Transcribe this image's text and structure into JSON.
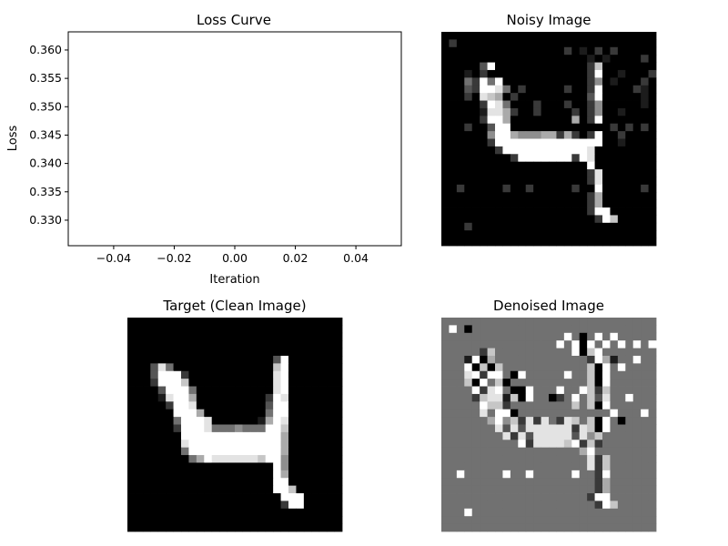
{
  "figure": {
    "background": "#ffffff",
    "axis_color": "#000000",
    "image_colormap": "gray"
  },
  "chart_data": [
    {
      "type": "line",
      "title": "Loss Curve",
      "xlabel": "Iteration",
      "ylabel": "Loss",
      "x": [],
      "series": [
        {
          "values": []
        }
      ],
      "xlim": [
        -0.055,
        0.055
      ],
      "ylim": [
        0.3255,
        0.3632
      ],
      "xticks": [
        -0.04,
        -0.02,
        0.0,
        0.02,
        0.04
      ],
      "xtick_labels": [
        "−0.04",
        "−0.02",
        "0.00",
        "0.02",
        "0.04"
      ],
      "yticks": [
        0.33,
        0.335,
        0.34,
        0.345,
        0.35,
        0.355,
        0.36
      ],
      "ytick_labels": [
        "0.330",
        "0.335",
        "0.340",
        "0.345",
        "0.350",
        "0.355",
        "0.360"
      ],
      "grid": false
    },
    {
      "type": "heatmap",
      "title": "Noisy Image",
      "colormap": "gray",
      "rows": 28,
      "cols": 28,
      "pixels": [
        "0000000000000000000000000000",
        "0200000000000000000000000000",
        "0000000000000000201020200000",
        "0000000000000000000101000020",
        "0000039000000000000270000000",
        "0001020000000000000290010002",
        "0004294900000000000250100020",
        "0003299840200000200290000210",
        "0002087602000000000390000010",
        "0000029840002000200250000010",
        "0000018862002000020250010000",
        "0000029960000000060290000000",
        "0002003990000000000000202020",
        "0000005996555662620290020000",
        "0000002999999999999990010000",
        "0000000299999999999800000000",
        "0000000002999999929800000000",
        "0000000000000000000900000000",
        "0000000000000000000280000000",
        "0000000000000000000280000000",
        "0020000020020000020090000020",
        "0000000000000000000260000000",
        "0000000000000000000260000000",
        "0000000000000000000299000000",
        "0000000000000000000029700000",
        "0002000000000000000000000000",
        "0000000000000000000000000000",
        "0000000000000000000000000000"
      ]
    },
    {
      "type": "heatmap",
      "title": "Target (Clean Image)",
      "colormap": "gray",
      "rows": 28,
      "cols": 28,
      "pixels": [
        "0000000000000000000000000000",
        "0000000000000000000000000000",
        "0000000000000000000000000000",
        "0000000000000000000000000000",
        "0000000000000000000000000000",
        "0000000000000000000390000000",
        "0003840000000000000790000000",
        "0003999200000000000890000000",
        "0002999700000000000890000000",
        "0000399940000000000890000000",
        "0000189960000000002980000000",
        "0000029980000000003990000000",
        "0000009996000000004990000000",
        "0000004999800000016980000000",
        "0000002999844454449970000000",
        "0000000999999999999960000000",
        "0000000899999999999960000000",
        "0000000499999999999960000000",
        "0000000046988888879950000000",
        "0000000000000000000950000000",
        "0000000000000000000960000000",
        "0000000000000000000990000000",
        "0000000000000000000997000000",
        "0000000000000000000099900000",
        "0000000000000000000029900000",
        "0000000000000000000000000000",
        "0000000000000000000000000000",
        "0000000000000000000000000000"
      ]
    },
    {
      "type": "heatmap",
      "title": "Denoised Image",
      "colormap": "gray",
      "rows": 28,
      "cols": 28,
      "pixels": [
        "4444444444444444444444444444",
        "4940444444444444444444444444",
        "4444444444444444940494944444",
        "4444444444444449490949494949",
        "4444427444444444490794444444",
        "4441906444444444444296144944",
        "4449070744444444444709494444",
        "4448929940944444944709444444",
        "4447094704444444444709444444",
        "4444928940094449449727444444",
        "4444278817094402494738449444",
        "4444497724444444474709444444",
        "4444484990444444444444944494",
        "4444446957282842874709404444",
        "4444444838388888828709444444",
        "4444444482838888838574444444",
        "4444444444928888792724444444",
        "4444444444444444446944444444",
        "4444444444444444444827444444",
        "4444444444444444444827444444",
        "4494444494494444494429444444",
        "4444444444444444444426444444",
        "4444444444444444444426444444",
        "4444444444444444444299444444",
        "4444444444444444444429744444",
        "4449444444444444444444444444",
        "4444444444444444444444444444",
        "4444444444444444444444444444"
      ]
    }
  ]
}
